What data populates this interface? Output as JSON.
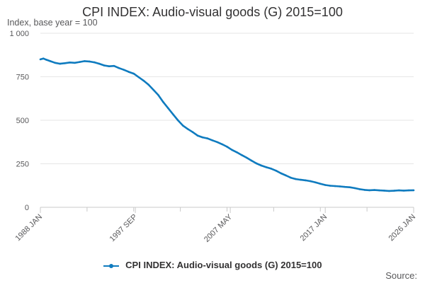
{
  "chart_data": {
    "type": "line",
    "title": "CPI INDEX: Audio-visual goods (G) 2015=100",
    "ylabel": "Index, base year = 100",
    "xlabel": "",
    "ylim": [
      0,
      1000
    ],
    "yticks": [
      0,
      250,
      500,
      750,
      1000
    ],
    "ytick_labels": [
      "0",
      "250",
      "500",
      "750",
      "1 000"
    ],
    "xlim": [
      1988.0,
      2026.0
    ],
    "xticks": [
      1988.0,
      1997.667,
      2007.333,
      2017.0,
      2026.0
    ],
    "xtick_labels": [
      "1988 JAN",
      "1997 SEP",
      "2007 MAY",
      "2017 JAN",
      "2026 JAN"
    ],
    "grid": "horizontal",
    "legend_position": "bottom",
    "color": "#0f7bbf",
    "source_label": "Source:",
    "series": [
      {
        "name": "CPI INDEX: Audio-visual goods (G) 2015=100",
        "x": [
          1988.0,
          1988.3,
          1988.6,
          1989.0,
          1989.5,
          1990.0,
          1990.5,
          1991.0,
          1991.5,
          1992.0,
          1992.5,
          1993.0,
          1993.5,
          1994.0,
          1994.5,
          1995.0,
          1995.5,
          1996.0,
          1996.5,
          1997.0,
          1997.5,
          1998.0,
          1998.5,
          1999.0,
          1999.5,
          2000.0,
          2000.5,
          2001.0,
          2001.5,
          2002.0,
          2002.5,
          2003.0,
          2003.5,
          2004.0,
          2004.5,
          2005.0,
          2005.5,
          2006.0,
          2006.5,
          2007.0,
          2007.5,
          2008.0,
          2008.5,
          2009.0,
          2009.5,
          2010.0,
          2010.5,
          2011.0,
          2011.5,
          2012.0,
          2012.5,
          2013.0,
          2013.5,
          2014.0,
          2014.5,
          2015.0,
          2015.5,
          2016.0,
          2016.5,
          2017.0,
          2017.5,
          2018.0,
          2018.5,
          2019.0,
          2019.5,
          2020.0,
          2020.5,
          2021.0,
          2021.5,
          2022.0,
          2022.5,
          2023.0,
          2023.5,
          2024.0,
          2024.5,
          2025.0,
          2025.5,
          2026.0
        ],
        "values": [
          850,
          855,
          848,
          840,
          830,
          825,
          828,
          832,
          830,
          835,
          840,
          838,
          833,
          825,
          815,
          810,
          812,
          800,
          790,
          778,
          768,
          748,
          728,
          705,
          675,
          645,
          605,
          570,
          535,
          500,
          470,
          450,
          432,
          412,
          402,
          396,
          385,
          375,
          362,
          348,
          330,
          316,
          300,
          285,
          268,
          252,
          240,
          230,
          222,
          210,
          195,
          183,
          170,
          162,
          158,
          155,
          150,
          143,
          135,
          128,
          124,
          122,
          120,
          117,
          115,
          110,
          104,
          100,
          98,
          99,
          97,
          96,
          94,
          95,
          97,
          96,
          97,
          98
        ]
      }
    ]
  }
}
